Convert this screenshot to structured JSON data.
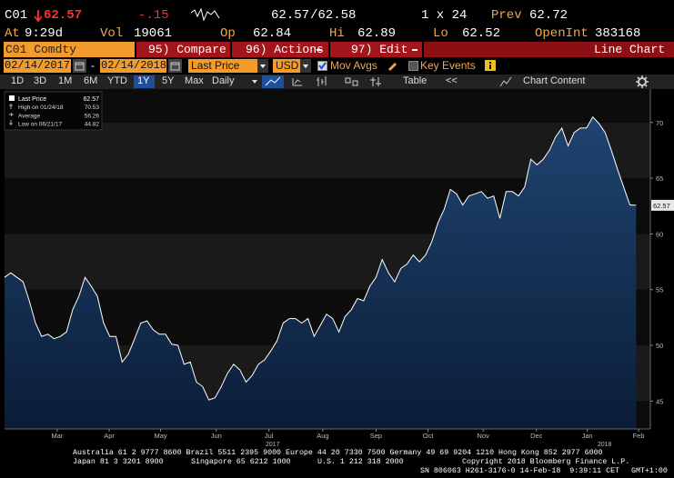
{
  "header": {
    "ticker": "C01",
    "last": "62.57",
    "change": "-.15",
    "bid": "62.57",
    "ask": "/62.58",
    "size": "1 x 24",
    "prev_label": "Prev",
    "prev": "62.72",
    "time_label": "At",
    "time": "9:29d",
    "vol_label": "Vol",
    "vol": "19061",
    "open_label": "Op",
    "open": "62.84",
    "high_label": "Hi",
    "high": "62.89",
    "low_label": "Lo",
    "low": "62.52",
    "oi_label": "OpenInt",
    "oi": "383168"
  },
  "menu": {
    "security": "C01 Comdty",
    "buttons": [
      "95) Compare",
      "96) Actions",
      "97) Edit"
    ],
    "view": "Line Chart"
  },
  "controls": {
    "start": "02/14/2017",
    "separator": "-",
    "end": "02/14/2018",
    "field": "Last Price",
    "currency": "USD",
    "mov_avgs": "Mov Avgs",
    "key_events": "Key Events"
  },
  "toolbar": {
    "periods": [
      "1D",
      "3D",
      "1M",
      "6M",
      "YTD",
      "1Y",
      "5Y",
      "Max"
    ],
    "active": 5,
    "frequency": "Daily",
    "table": "Table",
    "collapse": "<<",
    "chart_content": "Chart Content"
  },
  "chart_data": {
    "type": "line",
    "series": [
      {
        "name": "Last Price",
        "color": "#ffffff",
        "values": [
          56.1,
          56.5,
          56.1,
          55.7,
          54.0,
          52.0,
          50.8,
          51.0,
          50.6,
          50.8,
          51.2,
          53.2,
          54.4,
          56.1,
          55.3,
          54.4,
          52.0,
          50.8,
          50.8,
          48.5,
          49.2,
          50.6,
          52.0,
          52.2,
          51.4,
          51.0,
          51.0,
          50.1,
          50.0,
          48.3,
          48.5,
          46.7,
          46.3,
          45.1,
          45.3,
          46.3,
          47.5,
          48.3,
          47.8,
          46.7,
          47.3,
          48.3,
          48.7,
          49.5,
          50.4,
          52.0,
          52.4,
          52.4,
          52.0,
          52.4,
          50.8,
          51.8,
          52.8,
          52.4,
          51.2,
          52.6,
          53.2,
          54.2,
          54.0,
          55.3,
          56.1,
          57.7,
          56.5,
          55.7,
          56.9,
          57.3,
          58.1,
          57.5,
          58.1,
          59.3,
          61.0,
          62.2,
          64.0,
          63.6,
          62.6,
          63.4,
          63.6,
          63.8,
          63.2,
          63.4,
          61.4,
          63.8,
          63.8,
          63.4,
          64.2,
          66.7,
          66.2,
          66.7,
          67.5,
          68.7,
          69.5,
          67.9,
          69.1,
          69.5,
          69.5,
          70.5,
          69.9,
          69.1,
          67.5,
          65.8,
          64.2,
          62.6,
          62.57
        ]
      }
    ],
    "fill_color": "#1b3a60",
    "xlim": [
      0,
      104.3
    ],
    "ylim": [
      42.5,
      73
    ],
    "yticks": [
      45,
      50,
      55,
      60,
      65,
      70
    ],
    "xticks": [
      {
        "value": 8.5,
        "label": "Mar"
      },
      {
        "value": 16.9,
        "label": "Apr"
      },
      {
        "value": 25.2,
        "label": "May"
      },
      {
        "value": 34.2,
        "label": "Jun"
      },
      {
        "value": 42.7,
        "label": "Jul"
      },
      {
        "value": 51.4,
        "label": "Aug"
      },
      {
        "value": 60.0,
        "label": "Sep"
      },
      {
        "value": 68.4,
        "label": "Oct"
      },
      {
        "value": 77.3,
        "label": "Nov"
      },
      {
        "value": 85.9,
        "label": "Dec"
      },
      {
        "value": 94.1,
        "label": "Jan"
      },
      {
        "value": 102.4,
        "label": "Feb"
      }
    ],
    "year_ticks": [
      {
        "value": 43.3,
        "label": "2017"
      },
      {
        "value": 96.9,
        "label": "2018"
      }
    ],
    "last_value": 62.57,
    "stats": [
      {
        "label": "High on 01/24/18",
        "value": 70.53
      },
      {
        "label": "Average",
        "value": 56.26
      },
      {
        "label": "Low on 06/21/17",
        "value": 44.82
      }
    ]
  },
  "footer": {
    "line1": "Australia 61 2 9777 8600 Brazil 5511 2395 9000 Europe 44 20 7330 7500 Germany 49 69 9204 1210 Hong Kong 852 2977 6000",
    "line2": [
      "Japan 81 3 3201 8900",
      "Singapore 65 6212 1000",
      "U.S. 1 212 318 2000",
      "Copyright 2018 Bloomberg Finance L.P."
    ],
    "line3": [
      "SN 806063 H261-3176-0 14-Feb-18  9:39:11 CET",
      "GMT+1:00"
    ]
  }
}
